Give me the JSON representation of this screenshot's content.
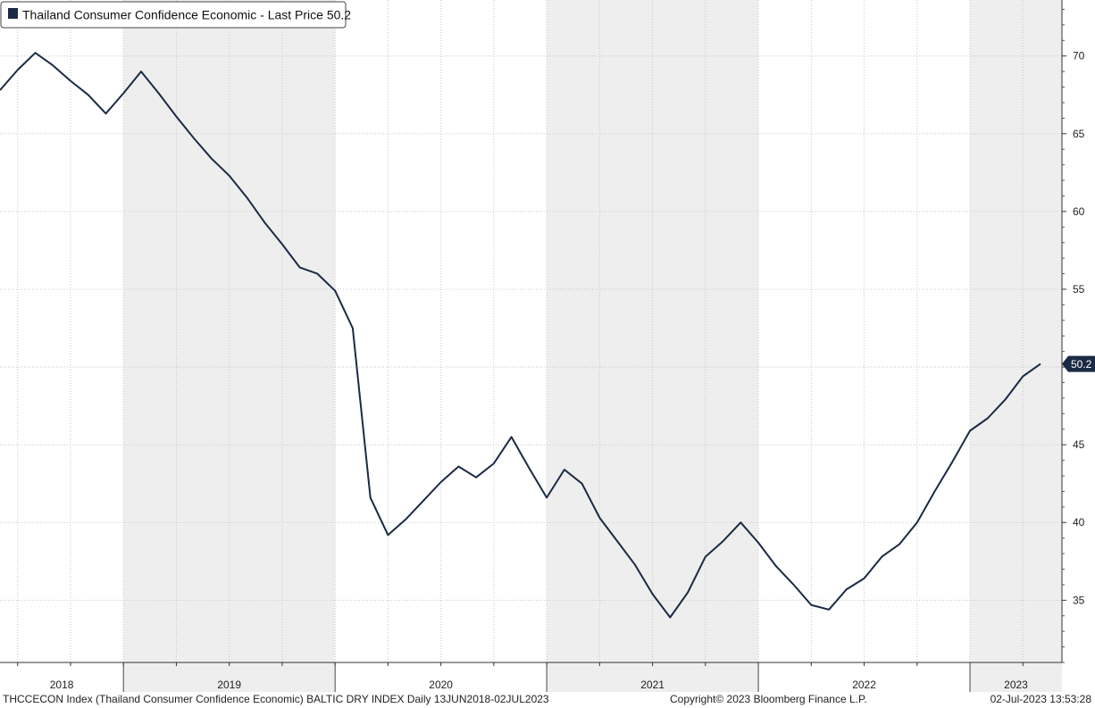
{
  "legend": {
    "label": "Thailand Consumer Confidence Economic - Last Price 50.2",
    "swatch_color": "#1b2a44"
  },
  "last_price_label": "50.2",
  "footer": {
    "left": "THCCECON Index (Thailand Consumer Confidence Economic) BALTIC DRY INDEX  Daily 13JUN2018-02JUL2023",
    "center": "Copyright© 2023 Bloomberg Finance L.P.",
    "right": "02-Jul-2023 13:53:28"
  },
  "chart_data": {
    "type": "line",
    "title": "Thailand Consumer Confidence Economic",
    "ylim": [
      31,
      73.6
    ],
    "yticks": [
      35,
      40,
      45,
      50,
      55,
      60,
      65,
      70
    ],
    "year_labels": [
      "2018",
      "2019",
      "2020",
      "2021",
      "2022",
      "2023"
    ],
    "grid": true,
    "legend_position": "top-left",
    "colors": {
      "line": "#1b2a44",
      "grid": "#c8c8c8",
      "axis_band": "#eeeeee"
    },
    "series": [
      {
        "name": "Thailand Consumer Confidence Economic",
        "x": [
          "2018-06",
          "2018-07",
          "2018-08",
          "2018-09",
          "2018-10",
          "2018-11",
          "2018-12",
          "2019-01",
          "2019-02",
          "2019-03",
          "2019-04",
          "2019-05",
          "2019-06",
          "2019-07",
          "2019-08",
          "2019-09",
          "2019-10",
          "2019-11",
          "2019-12",
          "2020-01",
          "2020-02",
          "2020-03",
          "2020-04",
          "2020-05",
          "2020-06",
          "2020-07",
          "2020-08",
          "2020-09",
          "2020-10",
          "2020-11",
          "2020-12",
          "2021-01",
          "2021-02",
          "2021-03",
          "2021-04",
          "2021-05",
          "2021-06",
          "2021-07",
          "2021-08",
          "2021-09",
          "2021-10",
          "2021-11",
          "2021-12",
          "2022-01",
          "2022-02",
          "2022-03",
          "2022-04",
          "2022-05",
          "2022-06",
          "2022-07",
          "2022-08",
          "2022-09",
          "2022-10",
          "2022-11",
          "2022-12",
          "2023-01",
          "2023-02",
          "2023-03",
          "2023-04",
          "2023-05"
        ],
        "values": [
          67.8,
          69.1,
          70.2,
          69.4,
          68.4,
          67.5,
          66.3,
          67.6,
          69.0,
          67.6,
          66.1,
          64.7,
          63.4,
          62.3,
          60.9,
          59.3,
          57.9,
          56.4,
          56.0,
          54.9,
          52.5,
          41.6,
          39.2,
          40.2,
          41.4,
          42.6,
          43.6,
          42.9,
          43.8,
          45.5,
          43.5,
          41.6,
          43.4,
          42.5,
          40.3,
          38.8,
          37.3,
          35.4,
          33.9,
          35.5,
          37.8,
          38.8,
          40.0,
          38.7,
          37.2,
          36.0,
          34.7,
          34.4,
          35.7,
          36.4,
          37.8,
          38.6,
          40.0,
          42.0,
          43.9,
          45.9,
          46.7,
          47.9,
          49.4,
          50.2
        ]
      }
    ]
  }
}
